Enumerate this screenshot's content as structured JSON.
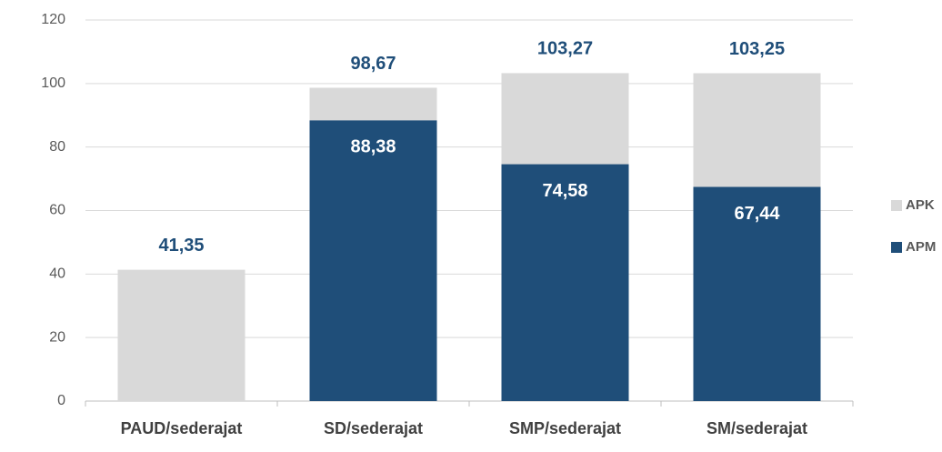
{
  "chart_data": {
    "type": "bar",
    "barmode": "overlay",
    "categories": [
      "PAUD/sederajat",
      "SD/sederajat",
      "SMP/sederajat",
      "SM/sederajat"
    ],
    "series": [
      {
        "name": "APK",
        "color": "#d9d9d9",
        "values": [
          41.35,
          98.67,
          103.27,
          103.25
        ],
        "value_labels": [
          "41,35",
          "98,67",
          "103,27",
          "103,25"
        ],
        "label_color": "#1f4e79",
        "label_position": "outside"
      },
      {
        "name": "APM",
        "color": "#1f4e79",
        "values": [
          null,
          88.38,
          74.58,
          67.44
        ],
        "value_labels": [
          null,
          "88,38",
          "74,58",
          "67,44"
        ],
        "label_color": "#ffffff",
        "label_position": "inside"
      }
    ],
    "ylim": [
      0,
      120
    ],
    "yticks": [
      0,
      20,
      40,
      60,
      80,
      100,
      120
    ],
    "grid": true,
    "legend": "right"
  }
}
